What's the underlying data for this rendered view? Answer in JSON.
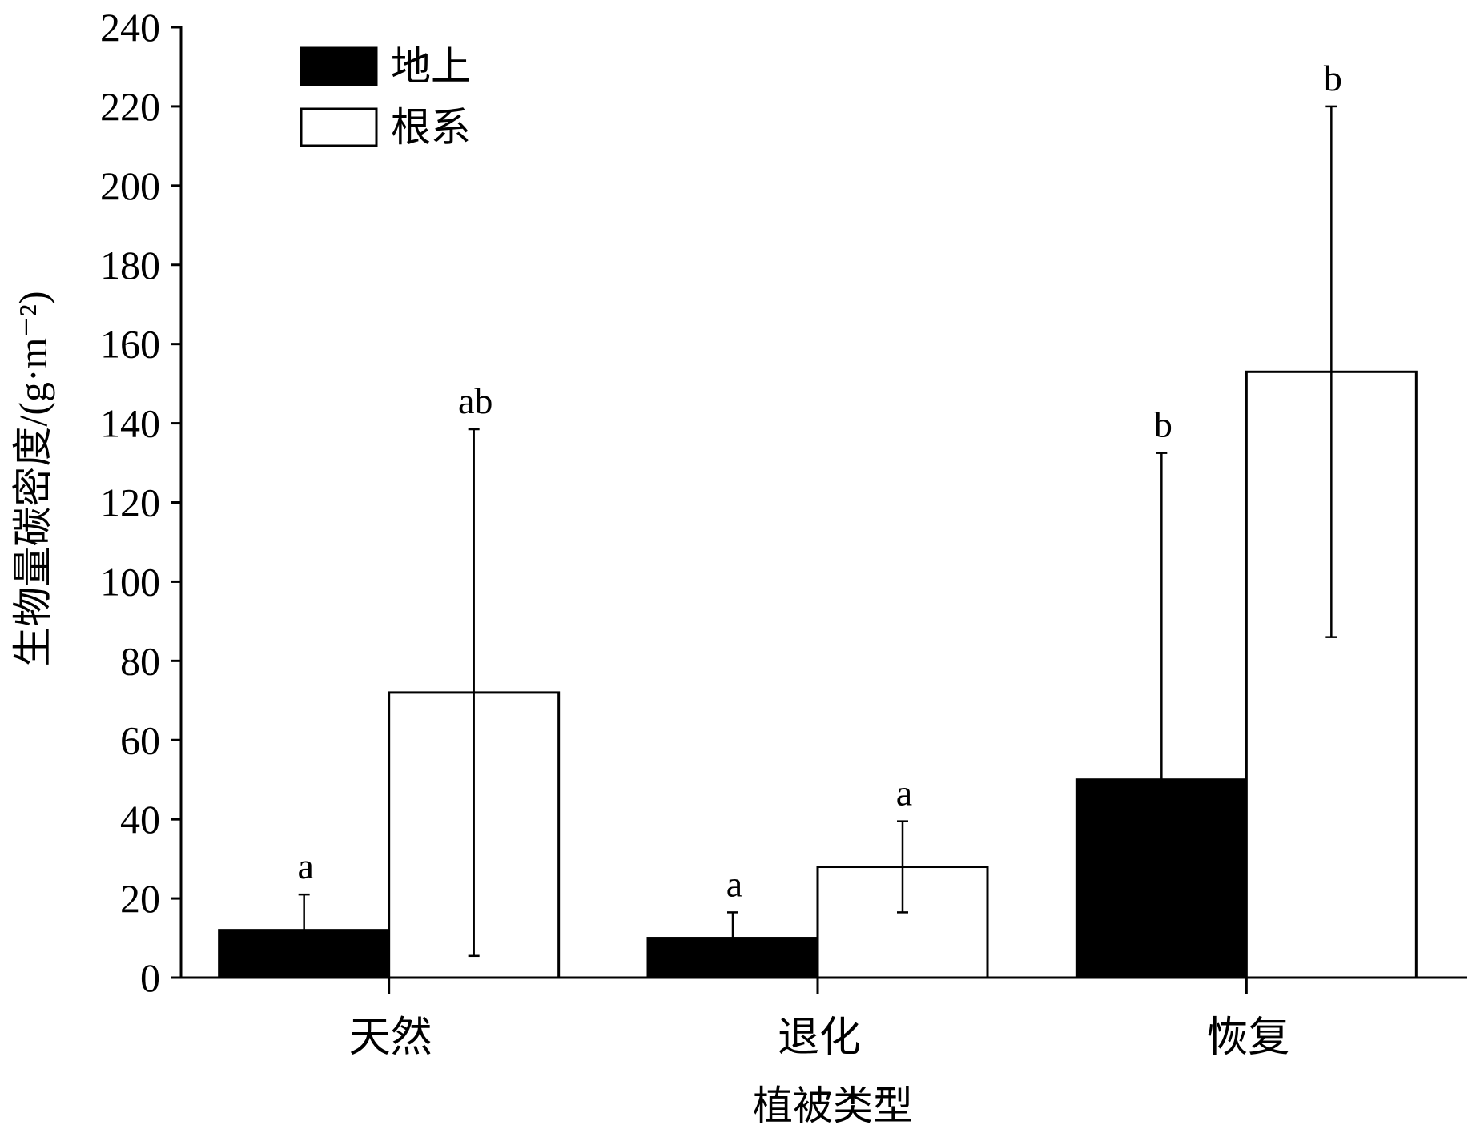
{
  "chart_data": {
    "type": "bar",
    "categories": [
      "天然",
      "退化",
      "恢复"
    ],
    "series": [
      {
        "name": "地上",
        "color": "#000000",
        "values": [
          12,
          10,
          50
        ],
        "error_upper": [
          21,
          16.5,
          132.5
        ],
        "error_lower": [
          12,
          10,
          50
        ],
        "significance": [
          "a",
          "a",
          "b"
        ]
      },
      {
        "name": "根系",
        "color": "#ffffff",
        "values": [
          72,
          28,
          153
        ],
        "error_upper": [
          138.5,
          39.5,
          220
        ],
        "error_lower": [
          5.5,
          16.5,
          86
        ],
        "significance": [
          "ab",
          "a",
          "b"
        ]
      }
    ],
    "xlabel": "植被类型",
    "ylabel": "生物量碳密度/(g·m⁻²)",
    "ylim": [
      0,
      240
    ],
    "yticks": [
      0,
      20,
      40,
      60,
      80,
      100,
      120,
      140,
      160,
      180,
      200,
      220,
      240
    ],
    "grid": false,
    "legend_position": "top-left"
  }
}
